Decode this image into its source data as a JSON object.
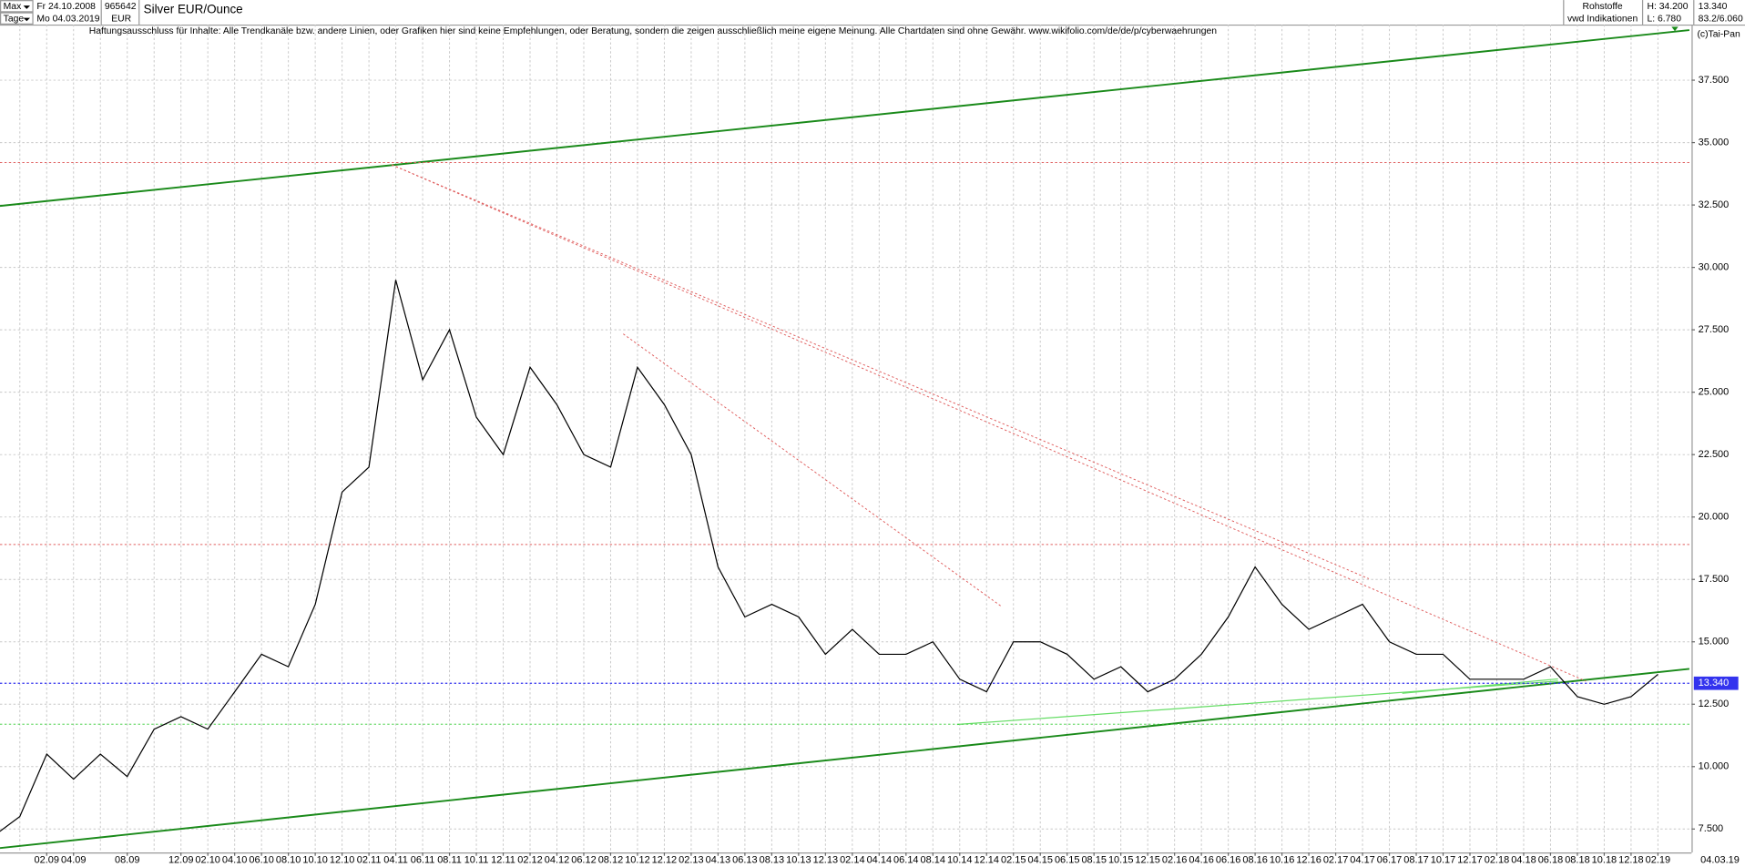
{
  "header": {
    "period": "Max",
    "interval": "Tage",
    "start_date": "Fr 24.10.2008",
    "end_date": "Mo 04.03.2019",
    "wkn": "965642",
    "currency": "EUR",
    "market": "Rohstoffe",
    "source": "vwd Indikationen",
    "high": "H: 34.200",
    "low": "L: 6.780",
    "last": "13.340",
    "range": "83.2/6.060",
    "copyright": "(c)Tai-Pan"
  },
  "chart_data": {
    "type": "line",
    "title": "Silver EUR/Ounce",
    "annotation": "Haftungsausschluss für Inhalte: Alle Trendkanäle bzw. andere Linien, oder Grafiken hier sind keine Empfehlungen, oder Beratung, sondern die zeigen ausschließlich meine eigene Meinung. Alle Chartdaten sind ohne Gewähr.  www.wikifolio.com/de/de/p/cyberwaehrungen",
    "categories": [
      null,
      null,
      "02.09",
      "04.09",
      null,
      "08.09",
      null,
      "12.09",
      "02.10",
      "04.10",
      "06.10",
      "08.10",
      "10.10",
      "12.10",
      "02.11",
      "04.11",
      "06.11",
      "08.11",
      "10.11",
      "12.11",
      "02.12",
      "04.12",
      "06.12",
      "08.12",
      "10.12",
      "12.12",
      "02.13",
      "04.13",
      "06.13",
      "08.13",
      "10.13",
      "12.13",
      "02.14",
      "04.14",
      "06.14",
      "08.14",
      "10.14",
      "12.14",
      "02.15",
      "04.15",
      "06.15",
      "08.15",
      "10.15",
      "12.15",
      "02.16",
      "04.16",
      "06.16",
      "08.16",
      "10.16",
      "12.16",
      "02.17",
      "04.17",
      "06.17",
      "08.17",
      "10.17",
      "12.17",
      "02.18",
      "04.18",
      "06.18",
      "08.18",
      "10.18",
      "12.18",
      "02.19"
    ],
    "series": [
      {
        "name": "Silver EUR/Ounce",
        "color": "#000000",
        "values": [
          7.2,
          8.0,
          10.5,
          9.5,
          10.5,
          9.6,
          11.5,
          12.0,
          11.5,
          13.0,
          14.5,
          14.0,
          16.5,
          21.0,
          22.0,
          29.5,
          25.5,
          27.5,
          24.0,
          22.5,
          26.0,
          24.5,
          22.5,
          22.0,
          26.0,
          24.5,
          22.5,
          18.0,
          16.0,
          16.5,
          16.0,
          14.5,
          15.5,
          14.5,
          14.5,
          15.0,
          13.5,
          13.0,
          15.0,
          15.0,
          14.5,
          13.5,
          14.0,
          13.0,
          13.5,
          14.5,
          16.0,
          18.0,
          16.5,
          15.5,
          16.0,
          16.5,
          15.0,
          14.5,
          14.5,
          13.5,
          13.5,
          13.5,
          14.0,
          12.8,
          12.5,
          12.8,
          13.7
        ]
      }
    ],
    "last_date": "04.03.19",
    "last_price": {
      "value": 13.34,
      "label": "13.340"
    },
    "hlines": [
      {
        "value": 34.2,
        "color": "#e06060"
      },
      {
        "value": 18.9,
        "color": "#e06060"
      },
      {
        "value": 11.7,
        "color": "#33cc33"
      }
    ],
    "ylim": [
      6.56,
      39.73
    ],
    "yticks": [
      {
        "value": 7.5,
        "label": "7.500"
      },
      {
        "value": 10,
        "label": "10.000"
      },
      {
        "value": 12.5,
        "label": "12.500"
      },
      {
        "value": 15,
        "label": "15.000"
      },
      {
        "value": 17.5,
        "label": "17.500"
      },
      {
        "value": 20,
        "label": "20.000"
      },
      {
        "value": 22.5,
        "label": "22.500"
      },
      {
        "value": 25,
        "label": "25.000"
      },
      {
        "value": 27.5,
        "label": "27.500"
      },
      {
        "value": 30,
        "label": "30.000"
      },
      {
        "value": 32.5,
        "label": "32.500"
      },
      {
        "value": 35,
        "label": "35.000"
      },
      {
        "value": 37.5,
        "label": "37.500"
      }
    ],
    "grid": true
  }
}
